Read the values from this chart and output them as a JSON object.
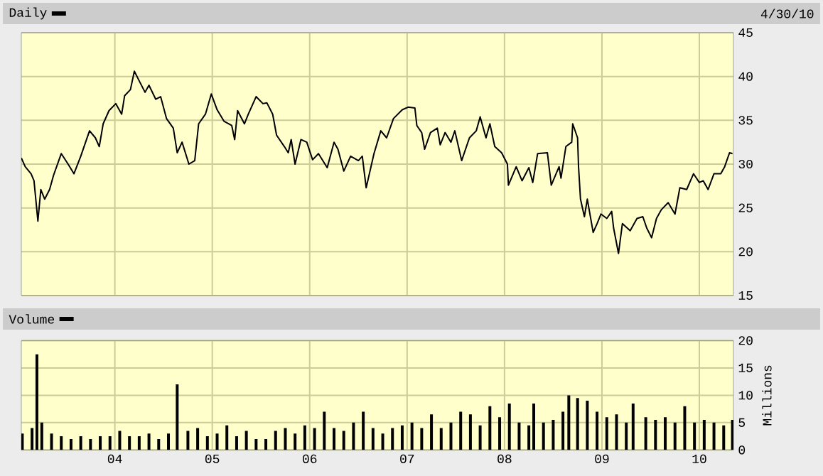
{
  "chart_data": [
    {
      "type": "line",
      "xlim": [
        2003.04,
        2010.35
      ],
      "ylim": [
        15,
        45
      ],
      "yticks": [
        15,
        20,
        25,
        30,
        35,
        40,
        45
      ],
      "grid": true,
      "legend": "top left",
      "tick_labels": "y",
      "annotations": [
        "4/30/10"
      ],
      "xticks": [
        {
          "value": 2004,
          "label": null
        },
        {
          "value": 2005,
          "label": null
        },
        {
          "value": 2006,
          "label": null
        },
        {
          "value": 2007,
          "label": null
        },
        {
          "value": 2008,
          "label": null
        },
        {
          "value": 2009,
          "label": null
        },
        {
          "value": 2010,
          "label": null
        }
      ],
      "series": [
        {
          "name": "Daily",
          "color": "#000000",
          "x": [
            2003.04,
            2003.08,
            2003.14,
            2003.17,
            2003.21,
            2003.24,
            2003.28,
            2003.33,
            2003.37,
            2003.45,
            2003.52,
            2003.58,
            2003.65,
            2003.74,
            2003.8,
            2003.84,
            2003.88,
            2003.94,
            2004.01,
            2004.07,
            2004.1,
            2004.16,
            2004.2,
            2004.25,
            2004.31,
            2004.35,
            2004.42,
            2004.47,
            2004.53,
            2004.6,
            2004.64,
            2004.69,
            2004.76,
            2004.82,
            2004.86,
            2004.93,
            2004.99,
            2005.05,
            2005.12,
            2005.2,
            2005.23,
            2005.26,
            2005.33,
            2005.37,
            2005.45,
            2005.52,
            2005.56,
            2005.62,
            2005.66,
            2005.74,
            2005.78,
            2005.81,
            2005.85,
            2005.91,
            2005.97,
            2006.03,
            2006.09,
            2006.18,
            2006.25,
            2006.29,
            2006.35,
            2006.42,
            2006.5,
            2006.54,
            2006.58,
            2006.66,
            2006.73,
            2006.79,
            2006.86,
            2006.95,
            2007.01,
            2007.08,
            2007.1,
            2007.15,
            2007.18,
            2007.24,
            2007.31,
            2007.34,
            2007.39,
            2007.45,
            2007.49,
            2007.56,
            2007.64,
            2007.71,
            2007.75,
            2007.81,
            2007.85,
            2007.9,
            2007.97,
            2008.03,
            2008.04,
            2008.12,
            2008.18,
            2008.25,
            2008.29,
            2008.34,
            2008.44,
            2008.48,
            2008.56,
            2008.58,
            2008.63,
            2008.69,
            2008.7,
            2008.75,
            2008.76,
            2008.78,
            2008.82,
            2008.85,
            2008.91,
            2008.95,
            2008.99,
            2009.05,
            2009.1,
            2009.12,
            2009.17,
            2009.21,
            2009.29,
            2009.36,
            2009.42,
            2009.46,
            2009.51,
            2009.56,
            2009.61,
            2009.68,
            2009.75,
            2009.8,
            2009.87,
            2009.94,
            2010.0,
            2010.04,
            2010.09,
            2010.15,
            2010.22,
            2010.26,
            2010.31,
            2010.34
          ],
          "values": [
            30.7,
            29.7,
            28.9,
            28.1,
            23.5,
            27.1,
            26.0,
            27.1,
            28.7,
            31.2,
            30.0,
            28.9,
            30.9,
            33.8,
            33.0,
            32.0,
            34.6,
            36.1,
            36.9,
            35.7,
            37.8,
            38.5,
            40.6,
            39.5,
            38.2,
            39.0,
            37.4,
            37.7,
            35.2,
            34.1,
            31.3,
            32.5,
            30.0,
            30.4,
            34.6,
            35.7,
            38.0,
            36.2,
            34.9,
            34.4,
            32.8,
            36.1,
            34.6,
            35.7,
            37.7,
            36.9,
            37.0,
            35.7,
            33.3,
            32.0,
            31.3,
            32.8,
            30.0,
            32.8,
            32.5,
            30.5,
            31.2,
            29.6,
            32.5,
            31.7,
            29.2,
            30.9,
            30.4,
            30.9,
            27.3,
            31.2,
            33.8,
            33.0,
            35.2,
            36.2,
            36.5,
            36.4,
            34.4,
            33.6,
            31.7,
            33.6,
            34.1,
            32.2,
            33.6,
            32.5,
            33.8,
            30.4,
            33.0,
            33.8,
            35.4,
            33.0,
            34.6,
            32.0,
            31.3,
            30.0,
            27.6,
            29.7,
            28.1,
            29.6,
            27.9,
            31.2,
            31.3,
            27.6,
            29.7,
            28.4,
            32.0,
            32.5,
            34.6,
            33.0,
            29.7,
            26.0,
            24.0,
            26.0,
            22.2,
            23.2,
            24.3,
            23.8,
            24.6,
            22.7,
            19.8,
            23.2,
            22.4,
            23.8,
            24.0,
            22.7,
            21.6,
            23.8,
            24.8,
            25.6,
            24.3,
            27.3,
            27.1,
            28.9,
            27.9,
            28.1,
            27.1,
            28.9,
            28.9,
            29.7,
            31.3,
            31.2
          ]
        }
      ]
    },
    {
      "type": "bar",
      "xlim": [
        2003.04,
        2010.35
      ],
      "ylim": [
        0,
        20
      ],
      "yticks": [
        0,
        5,
        10,
        15,
        20
      ],
      "ylabel": "Millions",
      "grid": true,
      "legend": "top left",
      "xticks": [
        {
          "value": 2004,
          "label": "04"
        },
        {
          "value": 2005,
          "label": "05"
        },
        {
          "value": 2006,
          "label": "06"
        },
        {
          "value": 2007,
          "label": "07"
        },
        {
          "value": 2008,
          "label": "08"
        },
        {
          "value": 2009,
          "label": "09"
        },
        {
          "value": 2010,
          "label": "10"
        }
      ],
      "series": [
        {
          "name": "Volume",
          "color": "#000000",
          "x": [
            2003.05,
            2003.15,
            2003.2,
            2003.25,
            2003.35,
            2003.45,
            2003.55,
            2003.65,
            2003.75,
            2003.85,
            2003.95,
            2004.05,
            2004.15,
            2004.25,
            2004.35,
            2004.45,
            2004.55,
            2004.64,
            2004.75,
            2004.85,
            2004.95,
            2005.05,
            2005.15,
            2005.25,
            2005.35,
            2005.45,
            2005.55,
            2005.65,
            2005.75,
            2005.85,
            2005.95,
            2006.05,
            2006.15,
            2006.25,
            2006.35,
            2006.45,
            2006.55,
            2006.65,
            2006.75,
            2006.85,
            2006.95,
            2007.05,
            2007.15,
            2007.25,
            2007.35,
            2007.45,
            2007.55,
            2007.65,
            2007.75,
            2007.85,
            2007.95,
            2008.05,
            2008.15,
            2008.25,
            2008.3,
            2008.4,
            2008.5,
            2008.6,
            2008.66,
            2008.75,
            2008.85,
            2008.95,
            2009.05,
            2009.15,
            2009.25,
            2009.32,
            2009.45,
            2009.55,
            2009.65,
            2009.75,
            2009.85,
            2009.95,
            2010.05,
            2010.15,
            2010.25,
            2010.34
          ],
          "values": [
            3,
            4,
            17.5,
            5,
            3,
            2.5,
            2,
            2.5,
            2,
            2.5,
            2.5,
            3.5,
            2.5,
            2.5,
            3,
            2,
            3,
            12,
            3.5,
            4,
            2.5,
            3,
            4.5,
            2.5,
            3.5,
            2,
            2,
            3.5,
            4,
            3,
            4.5,
            4,
            7,
            4,
            3.5,
            5,
            7,
            4,
            3,
            4,
            4.5,
            5,
            4,
            6.5,
            4,
            5,
            7,
            6.5,
            4.5,
            8,
            6,
            8.5,
            5,
            4.5,
            8.5,
            5,
            5.5,
            7,
            10,
            9.5,
            9,
            7,
            6,
            6.5,
            5,
            8.5,
            6,
            5.5,
            6,
            5,
            8,
            5,
            5.5,
            5,
            4.5,
            5.5
          ]
        }
      ]
    }
  ]
}
